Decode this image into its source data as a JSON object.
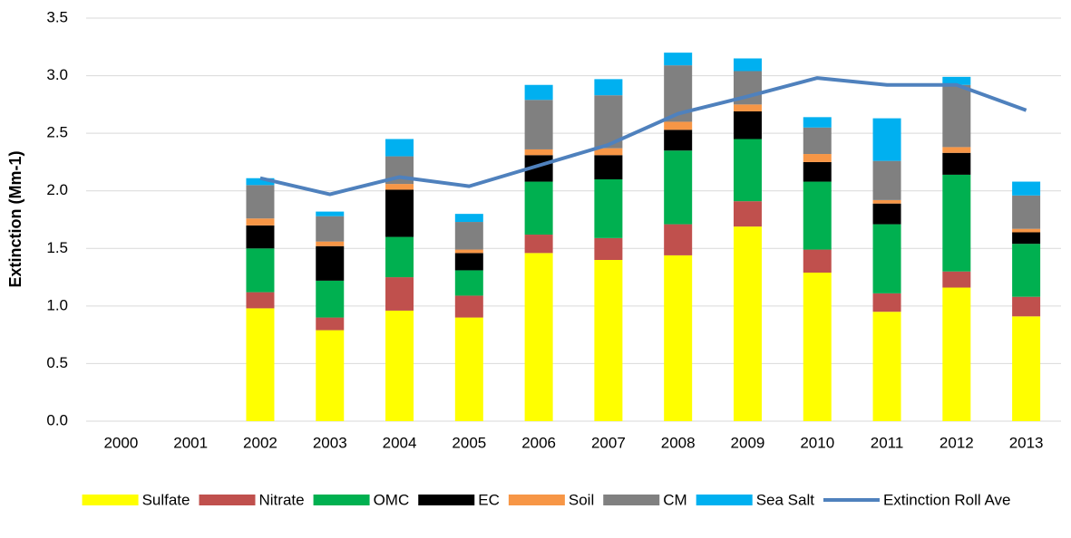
{
  "chart_data": {
    "type": "bar",
    "stacked": true,
    "y_label": "Extinction (Mm-1)",
    "categories": [
      "2000",
      "2001",
      "2002",
      "2003",
      "2004",
      "2005",
      "2006",
      "2007",
      "2008",
      "2009",
      "2010",
      "2011",
      "2012",
      "2013"
    ],
    "series": [
      {
        "name": "Sulfate",
        "color": "#ffff00",
        "type": "bar",
        "values": [
          null,
          null,
          0.98,
          0.79,
          0.96,
          0.9,
          1.46,
          1.4,
          1.44,
          1.69,
          1.29,
          0.95,
          1.16,
          0.91
        ]
      },
      {
        "name": "Nitrate",
        "color": "#c0504d",
        "type": "bar",
        "values": [
          null,
          null,
          0.14,
          0.11,
          0.29,
          0.19,
          0.16,
          0.19,
          0.27,
          0.22,
          0.2,
          0.16,
          0.14,
          0.17
        ]
      },
      {
        "name": "OMC",
        "color": "#00b050",
        "type": "bar",
        "values": [
          null,
          null,
          0.38,
          0.32,
          0.35,
          0.22,
          0.46,
          0.51,
          0.64,
          0.54,
          0.59,
          0.6,
          0.84,
          0.46
        ]
      },
      {
        "name": "EC",
        "color": "#000000",
        "type": "bar",
        "values": [
          null,
          null,
          0.2,
          0.3,
          0.41,
          0.15,
          0.23,
          0.21,
          0.18,
          0.24,
          0.17,
          0.18,
          0.19,
          0.1
        ]
      },
      {
        "name": "Soil",
        "color": "#f79646",
        "type": "bar",
        "values": [
          null,
          null,
          0.06,
          0.04,
          0.05,
          0.03,
          0.05,
          0.06,
          0.07,
          0.06,
          0.07,
          0.03,
          0.05,
          0.03
        ]
      },
      {
        "name": "CM",
        "color": "#808080",
        "type": "bar",
        "values": [
          null,
          null,
          0.29,
          0.22,
          0.24,
          0.24,
          0.43,
          0.46,
          0.49,
          0.29,
          0.23,
          0.34,
          0.54,
          0.29
        ]
      },
      {
        "name": "Sea Salt",
        "color": "#00b0f0",
        "type": "bar",
        "values": [
          null,
          null,
          0.06,
          0.04,
          0.15,
          0.07,
          0.13,
          0.14,
          0.11,
          0.11,
          0.09,
          0.37,
          0.07,
          0.12
        ]
      },
      {
        "name": "Extinction Roll Ave",
        "color": "#4f81bd",
        "type": "line",
        "values": [
          null,
          null,
          2.11,
          1.97,
          2.12,
          2.04,
          2.22,
          2.4,
          2.67,
          2.82,
          2.98,
          2.92,
          2.92,
          2.7
        ]
      }
    ],
    "ylim": [
      0,
      3.5
    ],
    "yticks": [
      {
        "value": 0,
        "label": "0.0"
      },
      0.5,
      {
        "value": 1,
        "label": "1.0"
      },
      1.5,
      {
        "value": 2,
        "label": "2.0"
      },
      2.5,
      {
        "value": 3,
        "label": "3.0"
      },
      3.5
    ],
    "grid": true,
    "legend": "bottom"
  }
}
